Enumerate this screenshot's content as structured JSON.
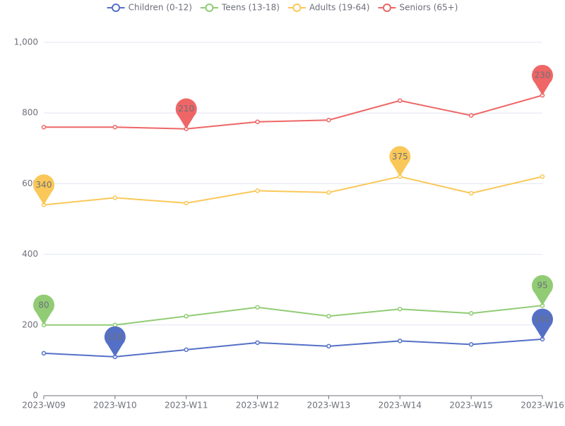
{
  "chart_data": {
    "type": "line",
    "stacked": true,
    "categories": [
      "2023-W09",
      "2023-W10",
      "2023-W11",
      "2023-W12",
      "2023-W13",
      "2023-W14",
      "2023-W15",
      "2023-W16"
    ],
    "series": [
      {
        "name": "Children (0-12)",
        "color": "#5470c6",
        "values": [
          120,
          110,
          130,
          150,
          140,
          155,
          145,
          160
        ],
        "marked_points": [
          1,
          7
        ]
      },
      {
        "name": "Teens (13-18)",
        "color": "#91cc75",
        "values": [
          80,
          90,
          95,
          100,
          85,
          90,
          88,
          95
        ],
        "marked_points": [
          0,
          7
        ]
      },
      {
        "name": "Adults (19-64)",
        "color": "#fac858",
        "values": [
          340,
          360,
          320,
          330,
          350,
          375,
          340,
          365
        ],
        "marked_points": [
          0,
          5
        ]
      },
      {
        "name": "Seniors (65+)",
        "color": "#ee6666",
        "values": [
          220,
          200,
          210,
          195,
          205,
          215,
          220,
          230
        ],
        "marked_points": [
          2,
          7
        ]
      }
    ],
    "ylim": [
      0,
      1000
    ],
    "yticks": [
      0,
      200,
      400,
      600,
      800,
      {
        "value": 1000,
        "label": "1,000"
      }
    ],
    "grid": true,
    "legend": "top"
  }
}
